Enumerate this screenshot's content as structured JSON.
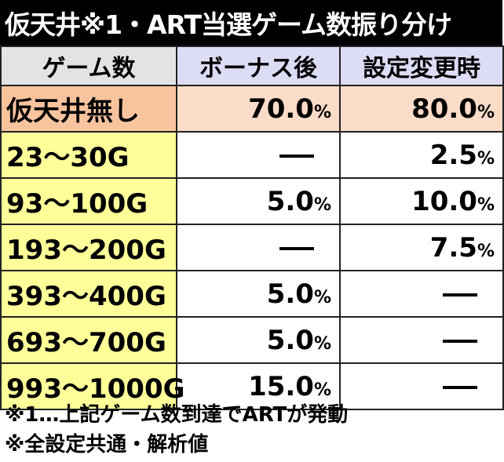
{
  "title": "仮天井※1・ART当選ゲーム数振り分け",
  "table": {
    "headers": [
      "ゲーム数",
      "ボーナス後",
      "設定変更時"
    ],
    "rows": [
      {
        "label": "仮天井無し",
        "bonus_after": "70.0",
        "setting_change": "80.0"
      },
      {
        "label": "23～30G",
        "bonus_after": "",
        "setting_change": "2.5"
      },
      {
        "label": "93～100G",
        "bonus_after": "5.0",
        "setting_change": "10.0"
      },
      {
        "label": "193～200G",
        "bonus_after": "",
        "setting_change": "7.5"
      },
      {
        "label": "393～400G",
        "bonus_after": "5.0",
        "setting_change": ""
      },
      {
        "label": "693～700G",
        "bonus_after": "5.0",
        "setting_change": ""
      },
      {
        "label": "993～1000G",
        "bonus_after": "15.0",
        "setting_change": ""
      }
    ],
    "percent_sign": "%",
    "colors": {
      "header_label_bg": "#e3e3e3",
      "header_bg": "#dcdcf5",
      "first_row_label_bg": "#f8c49e",
      "first_row_bg": "#fbdcc8",
      "label_bg": "#ffff99"
    }
  },
  "notes": [
    "※1…上記ゲーム数到達でARTが発動",
    "※全設定共通・解析値"
  ]
}
